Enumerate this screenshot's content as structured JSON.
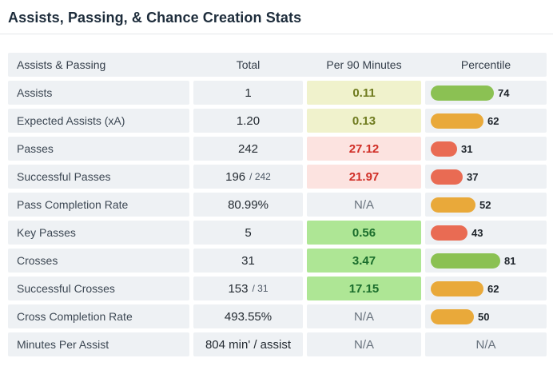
{
  "chart_data": {
    "type": "table",
    "title": "Assists, Passing, & Chance Creation Stats",
    "columns": [
      "Assists & Passing",
      "Total",
      "Per 90 Minutes",
      "Percentile"
    ],
    "na_label": "N/A",
    "percentile_axis": [
      0,
      100
    ],
    "colors": {
      "bar_green": "#8bc153",
      "bar_orange": "#e9a93a",
      "bar_red": "#e96b53",
      "cell_yellow_bg": "#f0f2cc",
      "cell_yellow_text": "#6f7b1f",
      "cell_red_bg": "#fce3e0",
      "cell_red_text": "#d02e26",
      "cell_green_bg": "#aee695",
      "cell_green_text": "#1a6d2c",
      "cell_bg": "#eef1f4"
    },
    "rows": [
      {
        "label": "Assists",
        "total": "1",
        "total_suffix": "",
        "per90": "0.11",
        "per90_tone": "yellow",
        "percentile": 74,
        "bar_tone": "green"
      },
      {
        "label": "Expected Assists (xA)",
        "total": "1.20",
        "total_suffix": "",
        "per90": "0.13",
        "per90_tone": "yellow",
        "percentile": 62,
        "bar_tone": "orange"
      },
      {
        "label": "Passes",
        "total": "242",
        "total_suffix": "",
        "per90": "27.12",
        "per90_tone": "red",
        "percentile": 31,
        "bar_tone": "red"
      },
      {
        "label": "Successful Passes",
        "total": "196",
        "total_suffix": "/ 242",
        "per90": "21.97",
        "per90_tone": "red",
        "percentile": 37,
        "bar_tone": "red"
      },
      {
        "label": "Pass Completion Rate",
        "total": "80.99%",
        "total_suffix": "",
        "per90": "N/A",
        "per90_tone": "na",
        "percentile": 52,
        "bar_tone": "orange"
      },
      {
        "label": "Key Passes",
        "total": "5",
        "total_suffix": "",
        "per90": "0.56",
        "per90_tone": "green",
        "percentile": 43,
        "bar_tone": "red"
      },
      {
        "label": "Crosses",
        "total": "31",
        "total_suffix": "",
        "per90": "3.47",
        "per90_tone": "green",
        "percentile": 81,
        "bar_tone": "green"
      },
      {
        "label": "Successful Crosses",
        "total": "153",
        "total_suffix": "/ 31",
        "per90": "17.15",
        "per90_tone": "green",
        "percentile": 62,
        "bar_tone": "orange"
      },
      {
        "label": "Cross Completion Rate",
        "total": "493.55%",
        "total_suffix": "",
        "per90": "N/A",
        "per90_tone": "na",
        "percentile": 50,
        "bar_tone": "orange"
      },
      {
        "label": "Minutes Per Assist",
        "total": "804 min' / assist",
        "total_suffix": "",
        "per90": "N/A",
        "per90_tone": "na",
        "percentile": null,
        "bar_tone": null
      }
    ]
  }
}
